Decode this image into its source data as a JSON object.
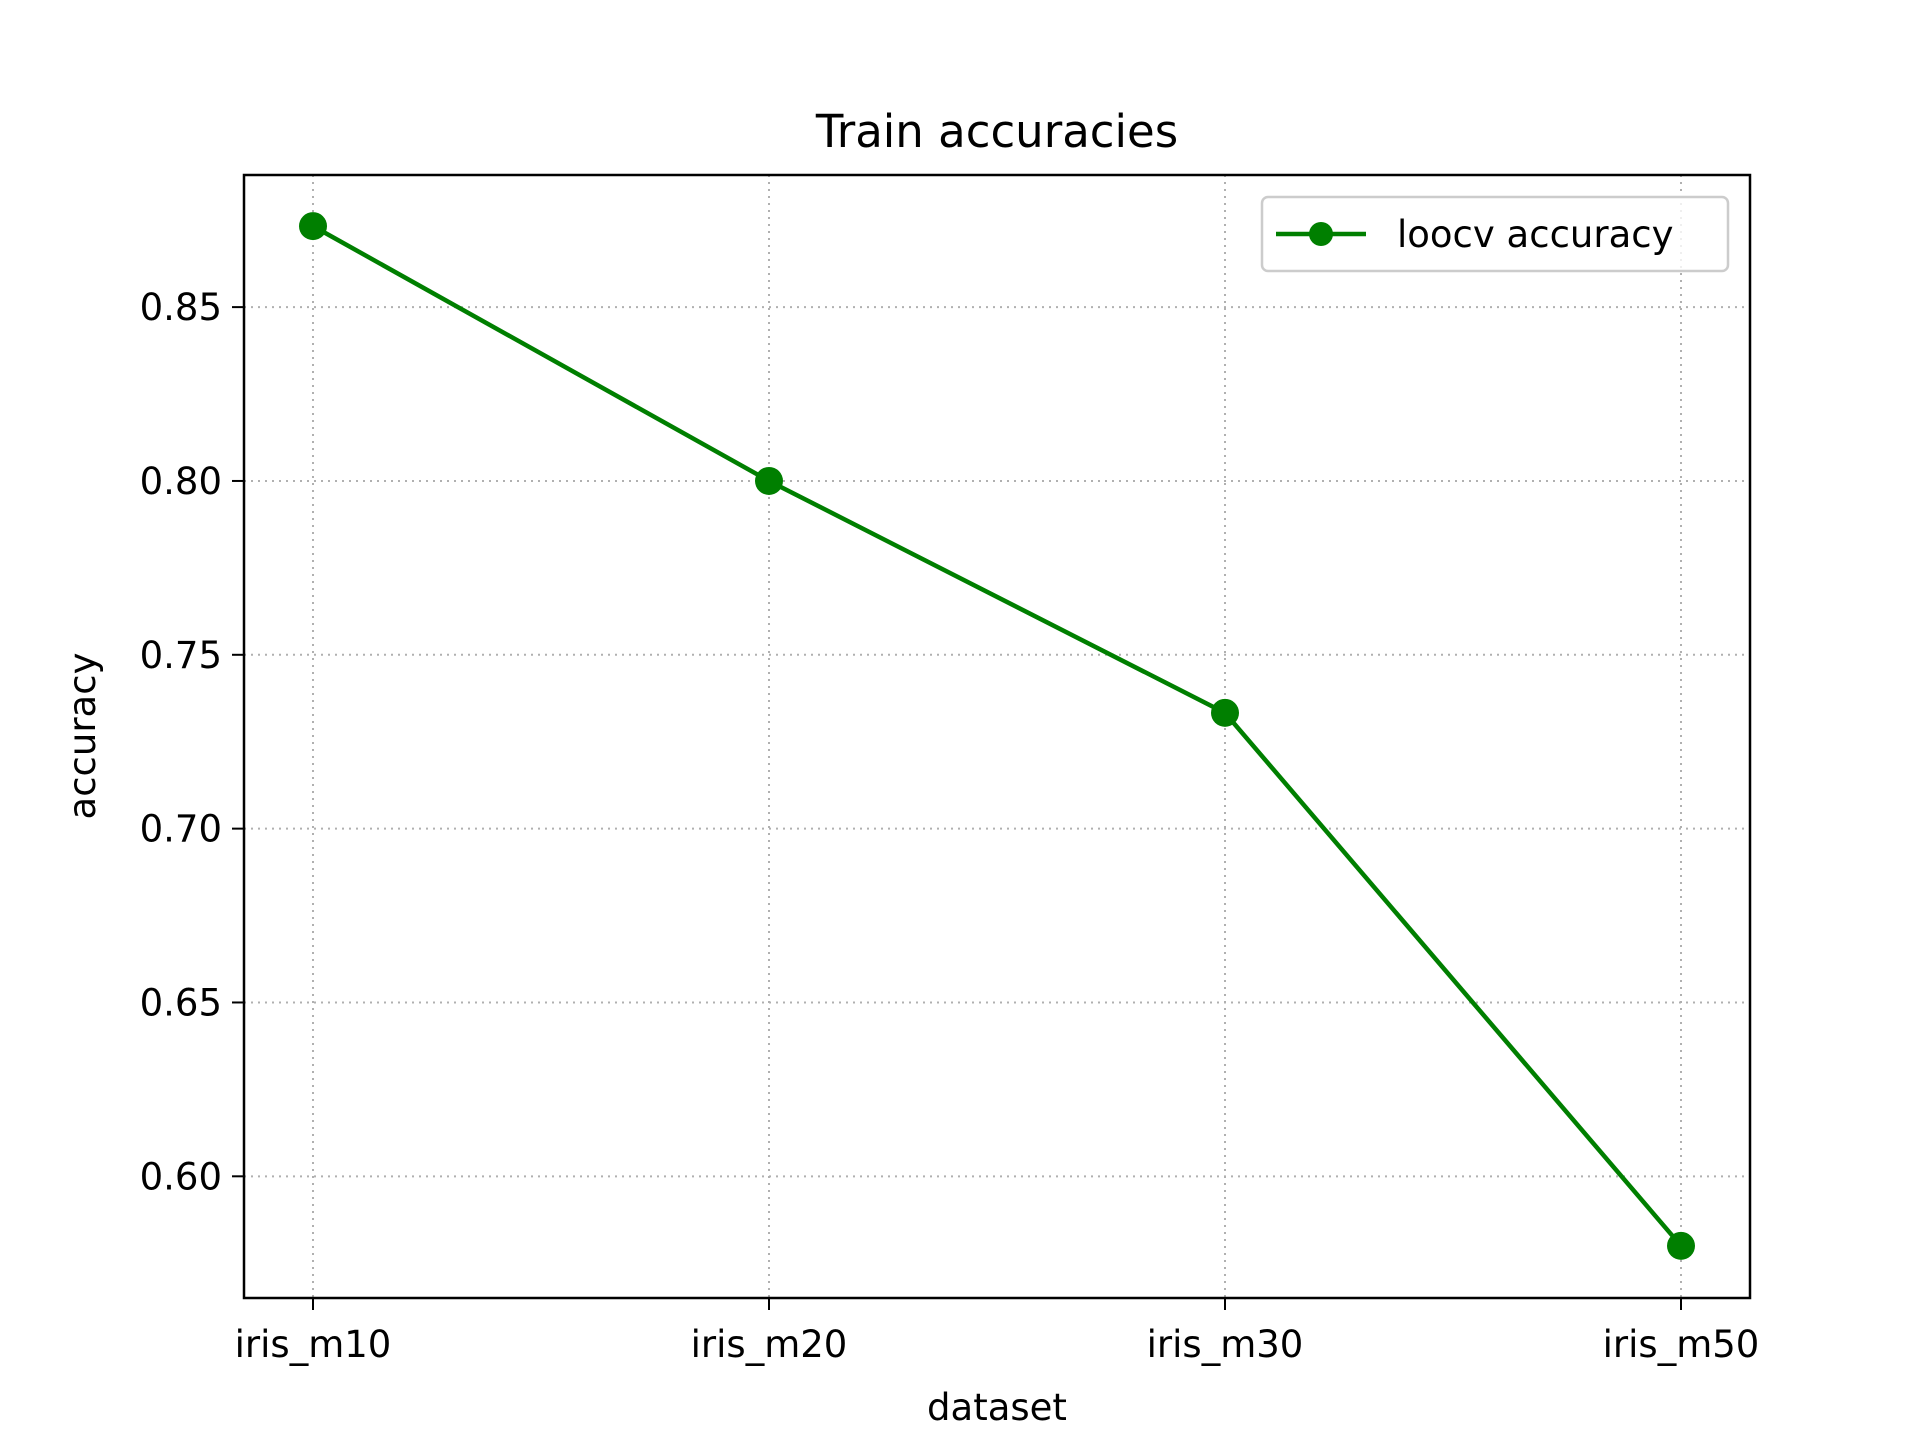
{
  "chart_data": {
    "type": "line",
    "title": "Train accuracies",
    "xlabel": "dataset",
    "ylabel": "accuracy",
    "categories": [
      "iris_m10",
      "iris_m20",
      "iris_m30",
      "iris_m50"
    ],
    "series": [
      {
        "name": "loocv accuracy",
        "values": [
          0.8733,
          0.8,
          0.7333,
          0.58
        ],
        "color": "#007f00",
        "marker": "circle"
      }
    ],
    "ylim": [
      0.565,
      0.888
    ],
    "yticks": [
      0.6,
      0.65,
      0.7,
      0.75,
      0.8,
      0.85
    ],
    "ytick_labels": [
      "0.60",
      "0.65",
      "0.70",
      "0.75",
      "0.80",
      "0.85"
    ],
    "grid": true,
    "grid_style": "dotted",
    "legend_position": "top-right"
  }
}
